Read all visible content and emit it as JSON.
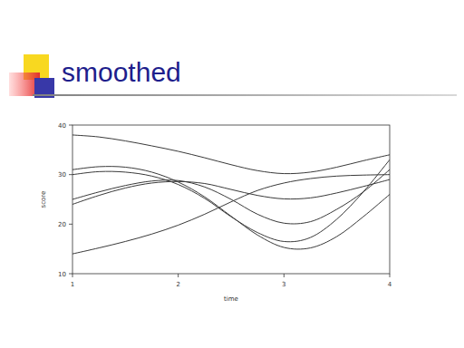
{
  "chart_data": {
    "type": "line",
    "title": "smoothed",
    "x_label": "time",
    "y_label": "score",
    "x": [
      1,
      1.25,
      1.5,
      1.75,
      2,
      2.25,
      2.5,
      2.75,
      3,
      3.25,
      3.5,
      3.75,
      4
    ],
    "series": [
      {
        "color": "#3a3a3a",
        "values": [
          38,
          37.6,
          36.8,
          35.8,
          34.7,
          33.4,
          32.0,
          30.8,
          30.2,
          30.5,
          31.5,
          32.8,
          34
        ]
      },
      {
        "color": "#3a3a3a",
        "values": [
          14,
          15.2,
          16.5,
          18,
          19.8,
          22,
          24.5,
          26.8,
          28.3,
          29.2,
          29.7,
          29.9,
          30
        ]
      },
      {
        "color": "#3a3a3a",
        "values": [
          31,
          31.6,
          31.5,
          30.5,
          28.5,
          25.5,
          21.6,
          17.8,
          15.3,
          15.2,
          17.5,
          21.5,
          26
        ]
      },
      {
        "color": "#3a3a3a",
        "values": [
          30,
          30.6,
          30.5,
          29.7,
          28,
          25.2,
          21.5,
          18.3,
          16.5,
          17.3,
          21,
          26.5,
          33
        ]
      },
      {
        "color": "#3a3a3a",
        "values": [
          25,
          26.5,
          27.8,
          28.7,
          28.8,
          27.5,
          25,
          22,
          20.2,
          20.5,
          23,
          26.5,
          31
        ]
      },
      {
        "color": "#3a3a3a",
        "values": [
          24,
          25.8,
          27.3,
          28.3,
          28.6,
          28.2,
          27,
          25.8,
          25.1,
          25.3,
          26.3,
          27.6,
          29
        ]
      }
    ],
    "xlim": [
      1,
      4
    ],
    "xticks": [
      1,
      2,
      3,
      4
    ],
    "ylim": [
      10,
      40
    ],
    "yticks": [
      10,
      20,
      30,
      40
    ],
    "grid": false
  }
}
